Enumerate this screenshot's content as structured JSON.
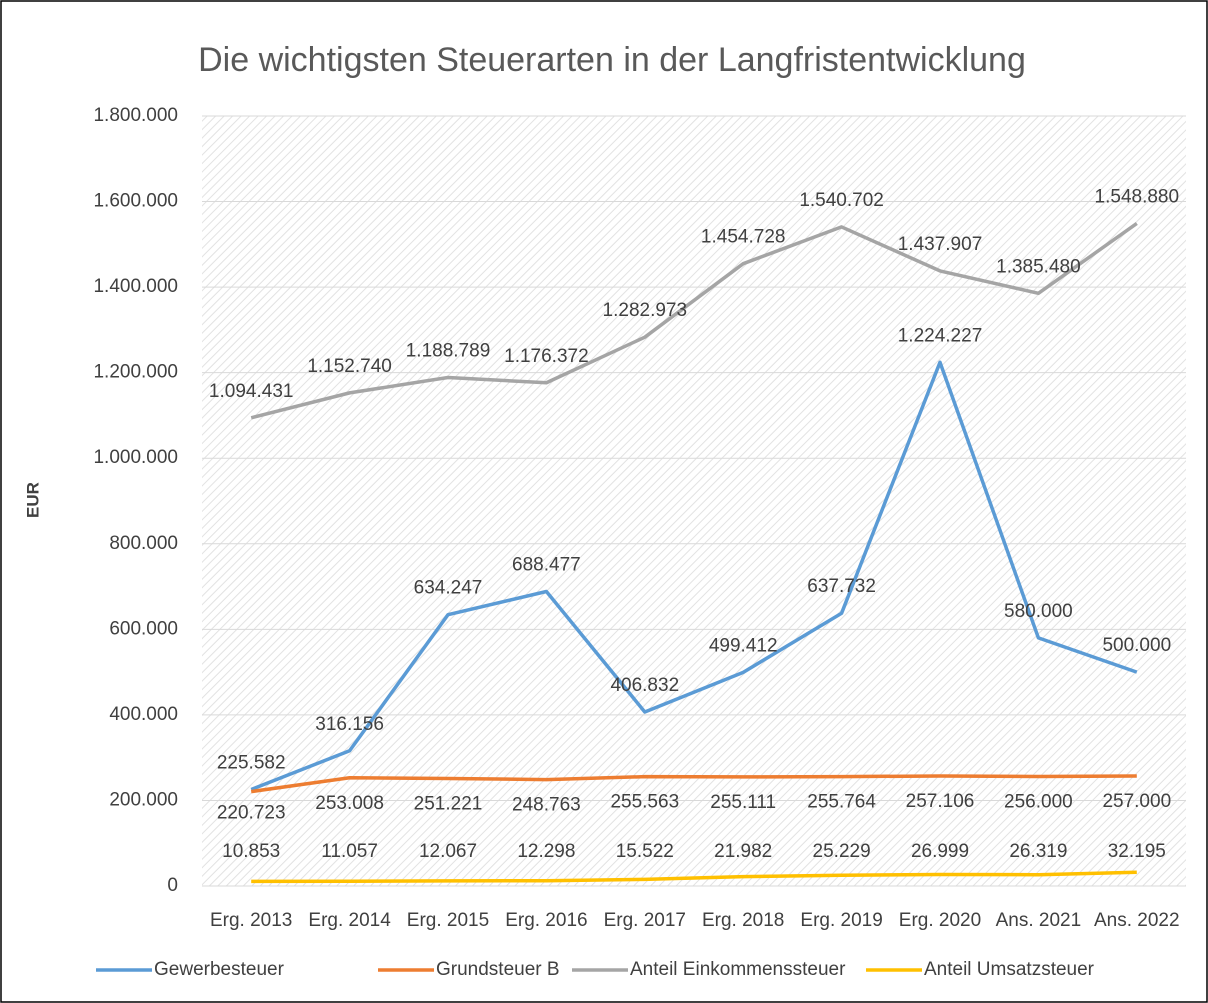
{
  "chart_data": {
    "type": "line",
    "title": "Die wichtigsten Steuerarten in der Langfristentwicklung",
    "y_label": "EUR",
    "categories": [
      "Erg. 2013",
      "Erg. 2014",
      "Erg. 2015",
      "Erg. 2016",
      "Erg. 2017",
      "Erg. 2018",
      "Erg. 2019",
      "Erg. 2020",
      "Ans. 2021",
      "Ans. 2022"
    ],
    "series": [
      {
        "name": "Gewerbesteuer",
        "color": "#5b9bd5",
        "values": [
          225582,
          316156,
          634247,
          688477,
          406832,
          499412,
          637732,
          1224227,
          580000,
          500000
        ],
        "value_labels": [
          "225.582",
          "316.156",
          "634.247",
          "688.477",
          "406.832",
          "499.412",
          "637.732",
          "1.224.227",
          "580.000",
          "500.000"
        ]
      },
      {
        "name": "Grundsteuer B",
        "color": "#ed7d31",
        "values": [
          220723,
          253008,
          251221,
          248763,
          255563,
          255111,
          255764,
          257106,
          256000,
          257000
        ],
        "value_labels": [
          "220.723",
          "253.008",
          "251.221",
          "248.763",
          "255.563",
          "255.111",
          "255.764",
          "257.106",
          "256.000",
          "257.000"
        ]
      },
      {
        "name": "Anteil Einkommenssteuer",
        "color": "#a5a5a5",
        "values": [
          1094431,
          1152740,
          1188789,
          1176372,
          1282973,
          1454728,
          1540702,
          1437907,
          1385480,
          1548880
        ],
        "value_labels": [
          "1.094.431",
          "1.152.740",
          "1.188.789",
          "1.176.372",
          "1.282.973",
          "1.454.728",
          "1.540.702",
          "1.437.907",
          "1.385.480",
          "1.548.880"
        ]
      },
      {
        "name": "Anteil Umsatzsteuer",
        "color": "#ffc000",
        "values": [
          10853,
          11057,
          12067,
          12298,
          15522,
          21982,
          25229,
          26999,
          26319,
          32195
        ],
        "value_labels": [
          "10.853",
          "11.057",
          "12.067",
          "12.298",
          "15.522",
          "21.982",
          "25.229",
          "26.999",
          "26.319",
          "32.195"
        ]
      }
    ],
    "ylim": [
      0,
      1800000
    ],
    "yticks": [
      0,
      {
        "value": 200000,
        "label": "200.000"
      },
      {
        "value": 400000,
        "label": "400.000"
      },
      {
        "value": 600000,
        "label": "600.000"
      },
      {
        "value": 800000,
        "label": "800.000"
      },
      {
        "value": 1000000,
        "label": "1.000.000"
      },
      {
        "value": 1200000,
        "label": "1.200.000"
      },
      {
        "value": 1400000,
        "label": "1.400.000"
      },
      {
        "value": 1600000,
        "label": "1.600.000"
      },
      {
        "value": 1800000,
        "label": "1.800.000"
      }
    ],
    "grid": true,
    "legend": "bottom"
  }
}
